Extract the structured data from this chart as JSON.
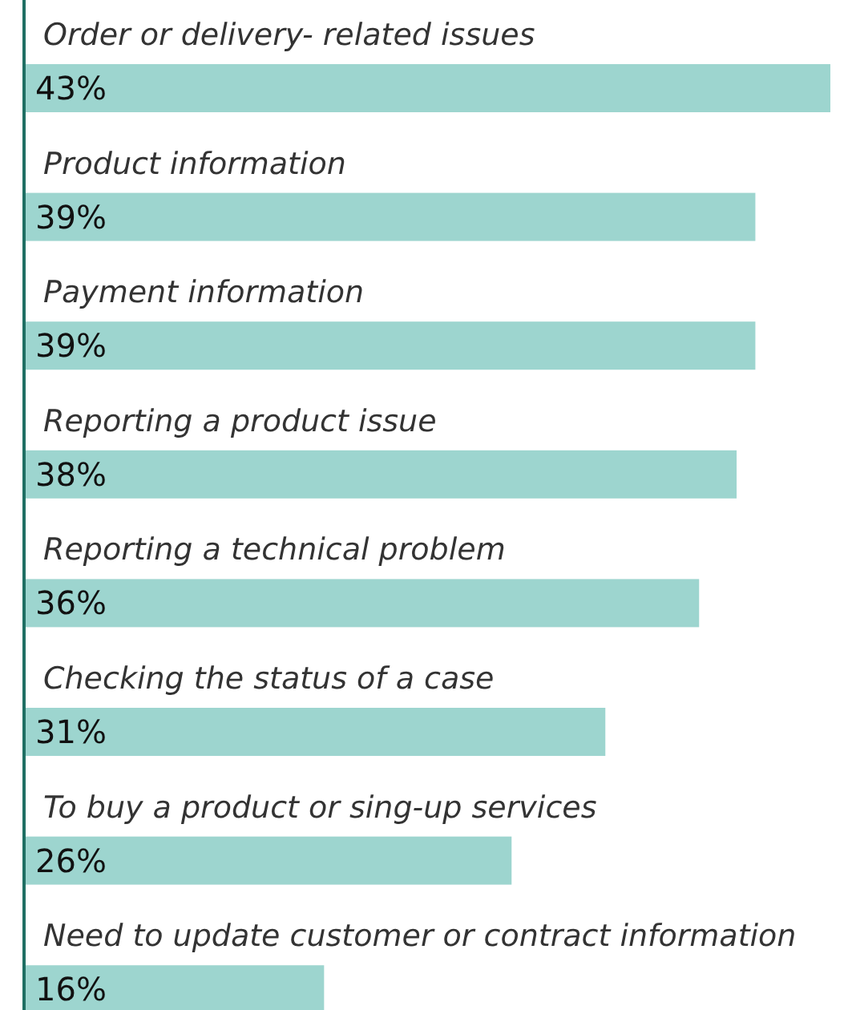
{
  "chart_data": {
    "type": "bar",
    "orientation": "horizontal",
    "categories": [
      "Order or delivery- related issues",
      "Product information",
      "Payment information",
      "Reporting a product issue",
      "Reporting a technical problem",
      "Checking the status of a case",
      "To buy a product or sing-up services",
      "Need to update customer or contract information"
    ],
    "values": [
      43,
      39,
      39,
      38,
      36,
      31,
      26,
      16
    ],
    "value_labels": [
      "43%",
      "39%",
      "39%",
      "38%",
      "36%",
      "31%",
      "26%",
      "16%"
    ],
    "color": "#9dd5cf"
  }
}
